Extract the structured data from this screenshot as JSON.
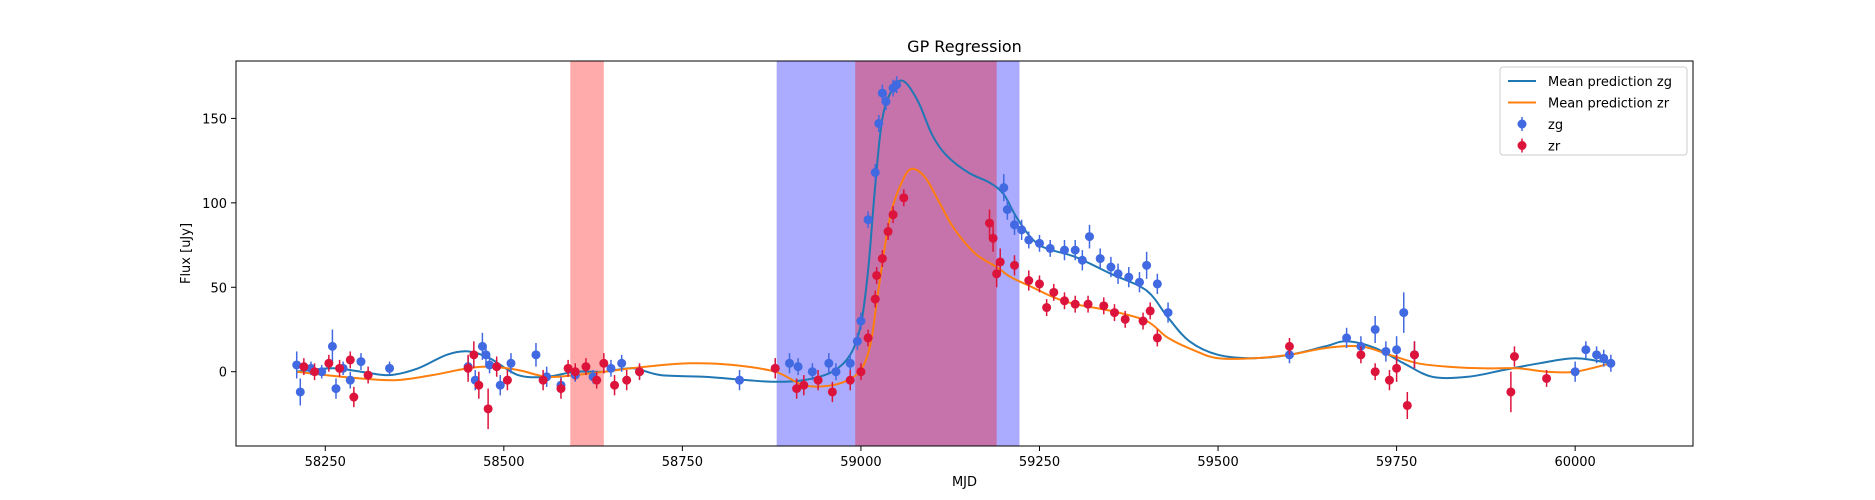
{
  "chart_data": {
    "type": "scatter",
    "title": "GP Regression",
    "xlabel": "MJD",
    "ylabel": "Flux [uJy]",
    "xlim": [
      58125,
      60165
    ],
    "ylim": [
      -44,
      184
    ],
    "xticks": [
      58250,
      58500,
      58750,
      59000,
      59250,
      59500,
      59750,
      60000
    ],
    "yticks": [
      0,
      50,
      100,
      150
    ],
    "grid": false,
    "legend_position": "top-right",
    "shaded_regions": [
      {
        "x0": 58593,
        "x1": 58640,
        "color": "#ff0000",
        "opacity": 0.33
      },
      {
        "x0": 58882,
        "x1": 59222,
        "color": "#0000ff",
        "opacity": 0.33
      },
      {
        "x0": 58992,
        "x1": 59190,
        "color": "#ff0000",
        "opacity": 0.33
      }
    ],
    "series": [
      {
        "name": "Mean prediction zg",
        "kind": "line",
        "color": "#1f77b4",
        "x": [
          58210,
          58260,
          58300,
          58340,
          58380,
          58420,
          58450,
          58480,
          58520,
          58560,
          58600,
          58640,
          58680,
          58720,
          58780,
          58840,
          58880,
          58920,
          58960,
          58985,
          59000,
          59010,
          59020,
          59030,
          59045,
          59060,
          59080,
          59100,
          59120,
          59150,
          59180,
          59200,
          59220,
          59250,
          59300,
          59350,
          59400,
          59430,
          59460,
          59500,
          59550,
          59600,
          59650,
          59680,
          59720,
          59760,
          59800,
          59850,
          59900,
          59950,
          60000,
          60050
        ],
        "y": [
          0,
          2,
          0,
          -2,
          2,
          10,
          12,
          8,
          -2,
          -3,
          0,
          0,
          2,
          -2,
          -3,
          -5,
          -6,
          -5,
          0,
          10,
          28,
          60,
          110,
          150,
          168,
          172,
          160,
          140,
          128,
          118,
          112,
          105,
          90,
          75,
          68,
          58,
          48,
          32,
          18,
          10,
          8,
          10,
          15,
          18,
          14,
          5,
          -3,
          -3,
          1,
          5,
          8,
          5
        ]
      },
      {
        "name": "Mean prediction zr",
        "kind": "line",
        "color": "#ff7f0e",
        "x": [
          58210,
          58250,
          58300,
          58350,
          58400,
          58450,
          58480,
          58520,
          58560,
          58600,
          58640,
          58700,
          58760,
          58820,
          58880,
          58920,
          58960,
          58990,
          59005,
          59015,
          59025,
          59040,
          59055,
          59070,
          59090,
          59110,
          59130,
          59160,
          59190,
          59210,
          59240,
          59270,
          59300,
          59350,
          59400,
          59430,
          59470,
          59500,
          59550,
          59600,
          59650,
          59700,
          59740,
          59780,
          59820,
          59870,
          59920,
          59960,
          60000,
          60050
        ],
        "y": [
          0,
          -2,
          -4,
          -5,
          -2,
          2,
          3,
          1,
          -3,
          -2,
          0,
          3,
          5,
          4,
          0,
          -8,
          -8,
          -3,
          5,
          20,
          50,
          90,
          110,
          120,
          115,
          100,
          85,
          70,
          62,
          56,
          50,
          44,
          40,
          36,
          30,
          20,
          12,
          8,
          8,
          10,
          14,
          15,
          10,
          5,
          3,
          2,
          2,
          0,
          0,
          5
        ]
      },
      {
        "name": "zg",
        "kind": "errorbar",
        "color": "#4169e1",
        "x": [
          58210,
          58215,
          58230,
          58245,
          58260,
          58265,
          58275,
          58285,
          58300,
          58340,
          58450,
          58460,
          58470,
          58475,
          58480,
          58495,
          58510,
          58545,
          58560,
          58580,
          58600,
          58625,
          58650,
          58665,
          58690,
          58830,
          58880,
          58900,
          58912,
          58932,
          58955,
          58965,
          58985,
          58995,
          59000,
          59010,
          59020,
          59025,
          59030,
          59035,
          59045,
          59050,
          59200,
          59205,
          59215,
          59225,
          59235,
          59250,
          59265,
          59285,
          59300,
          59310,
          59320,
          59335,
          59350,
          59360,
          59375,
          59390,
          59400,
          59415,
          59430,
          59600,
          59680,
          59700,
          59720,
          59735,
          59750,
          59760,
          59775,
          60000,
          60015,
          60030,
          60040,
          60050
        ],
        "y": [
          4,
          -12,
          2,
          0,
          15,
          -10,
          2,
          -5,
          6,
          2,
          3,
          -5,
          15,
          10,
          4,
          -8,
          5,
          10,
          -3,
          -8,
          -2,
          -3,
          2,
          5,
          0,
          -5,
          2,
          5,
          3,
          0,
          5,
          0,
          5,
          18,
          30,
          90,
          118,
          147,
          165,
          160,
          168,
          170,
          109,
          96,
          87,
          84,
          78,
          76,
          73,
          72,
          72,
          66,
          80,
          67,
          62,
          58,
          56,
          53,
          63,
          52,
          35,
          10,
          20,
          15,
          25,
          12,
          13,
          35,
          10,
          0,
          13,
          10,
          8,
          5
        ],
        "err": [
          8,
          8,
          4,
          4,
          10,
          6,
          4,
          5,
          5,
          4,
          6,
          6,
          8,
          6,
          5,
          6,
          6,
          7,
          6,
          5,
          4,
          4,
          5,
          5,
          4,
          6,
          6,
          6,
          5,
          5,
          6,
          5,
          5,
          5,
          5,
          5,
          5,
          5,
          5,
          5,
          5,
          5,
          8,
          6,
          6,
          6,
          5,
          5,
          5,
          6,
          6,
          6,
          7,
          6,
          6,
          6,
          6,
          6,
          8,
          6,
          6,
          5,
          6,
          6,
          8,
          6,
          8,
          12,
          8,
          6,
          5,
          5,
          5,
          5
        ]
      },
      {
        "name": "zr",
        "kind": "errorbar",
        "color": "#dc143c",
        "x": [
          58220,
          58235,
          58255,
          58270,
          58285,
          58290,
          58310,
          58450,
          58458,
          58465,
          58478,
          58490,
          58505,
          58555,
          58580,
          58590,
          58600,
          58615,
          58630,
          58640,
          58655,
          58672,
          58690,
          58880,
          58910,
          58920,
          58940,
          58960,
          58985,
          59000,
          59010,
          59020,
          59022,
          59030,
          59038,
          59045,
          59060,
          59180,
          59185,
          59190,
          59195,
          59215,
          59235,
          59250,
          59260,
          59270,
          59285,
          59300,
          59318,
          59340,
          59355,
          59370,
          59395,
          59405,
          59415,
          59600,
          59700,
          59720,
          59740,
          59750,
          59765,
          59775,
          59910,
          59915,
          59960
        ],
        "y": [
          3,
          0,
          5,
          2,
          7,
          -15,
          -2,
          2,
          10,
          -8,
          -22,
          3,
          -5,
          -5,
          -10,
          2,
          0,
          3,
          -5,
          5,
          -8,
          -5,
          0,
          2,
          -10,
          -8,
          -5,
          -12,
          -5,
          0,
          20,
          43,
          57,
          67,
          83,
          93,
          103,
          88,
          79,
          58,
          65,
          63,
          54,
          52,
          38,
          47,
          42,
          40,
          40,
          39,
          35,
          31,
          30,
          36,
          20,
          15,
          10,
          0,
          -5,
          2,
          -20,
          10,
          -12,
          9,
          -4
        ],
        "err": [
          5,
          5,
          5,
          5,
          5,
          6,
          5,
          8,
          8,
          8,
          12,
          6,
          6,
          6,
          6,
          5,
          5,
          5,
          5,
          6,
          6,
          6,
          5,
          6,
          6,
          6,
          6,
          6,
          6,
          5,
          5,
          5,
          5,
          5,
          5,
          5,
          5,
          8,
          8,
          8,
          8,
          6,
          6,
          5,
          5,
          5,
          5,
          5,
          5,
          5,
          5,
          5,
          5,
          5,
          5,
          5,
          5,
          5,
          6,
          8,
          8,
          8,
          12,
          6,
          5
        ]
      }
    ]
  }
}
